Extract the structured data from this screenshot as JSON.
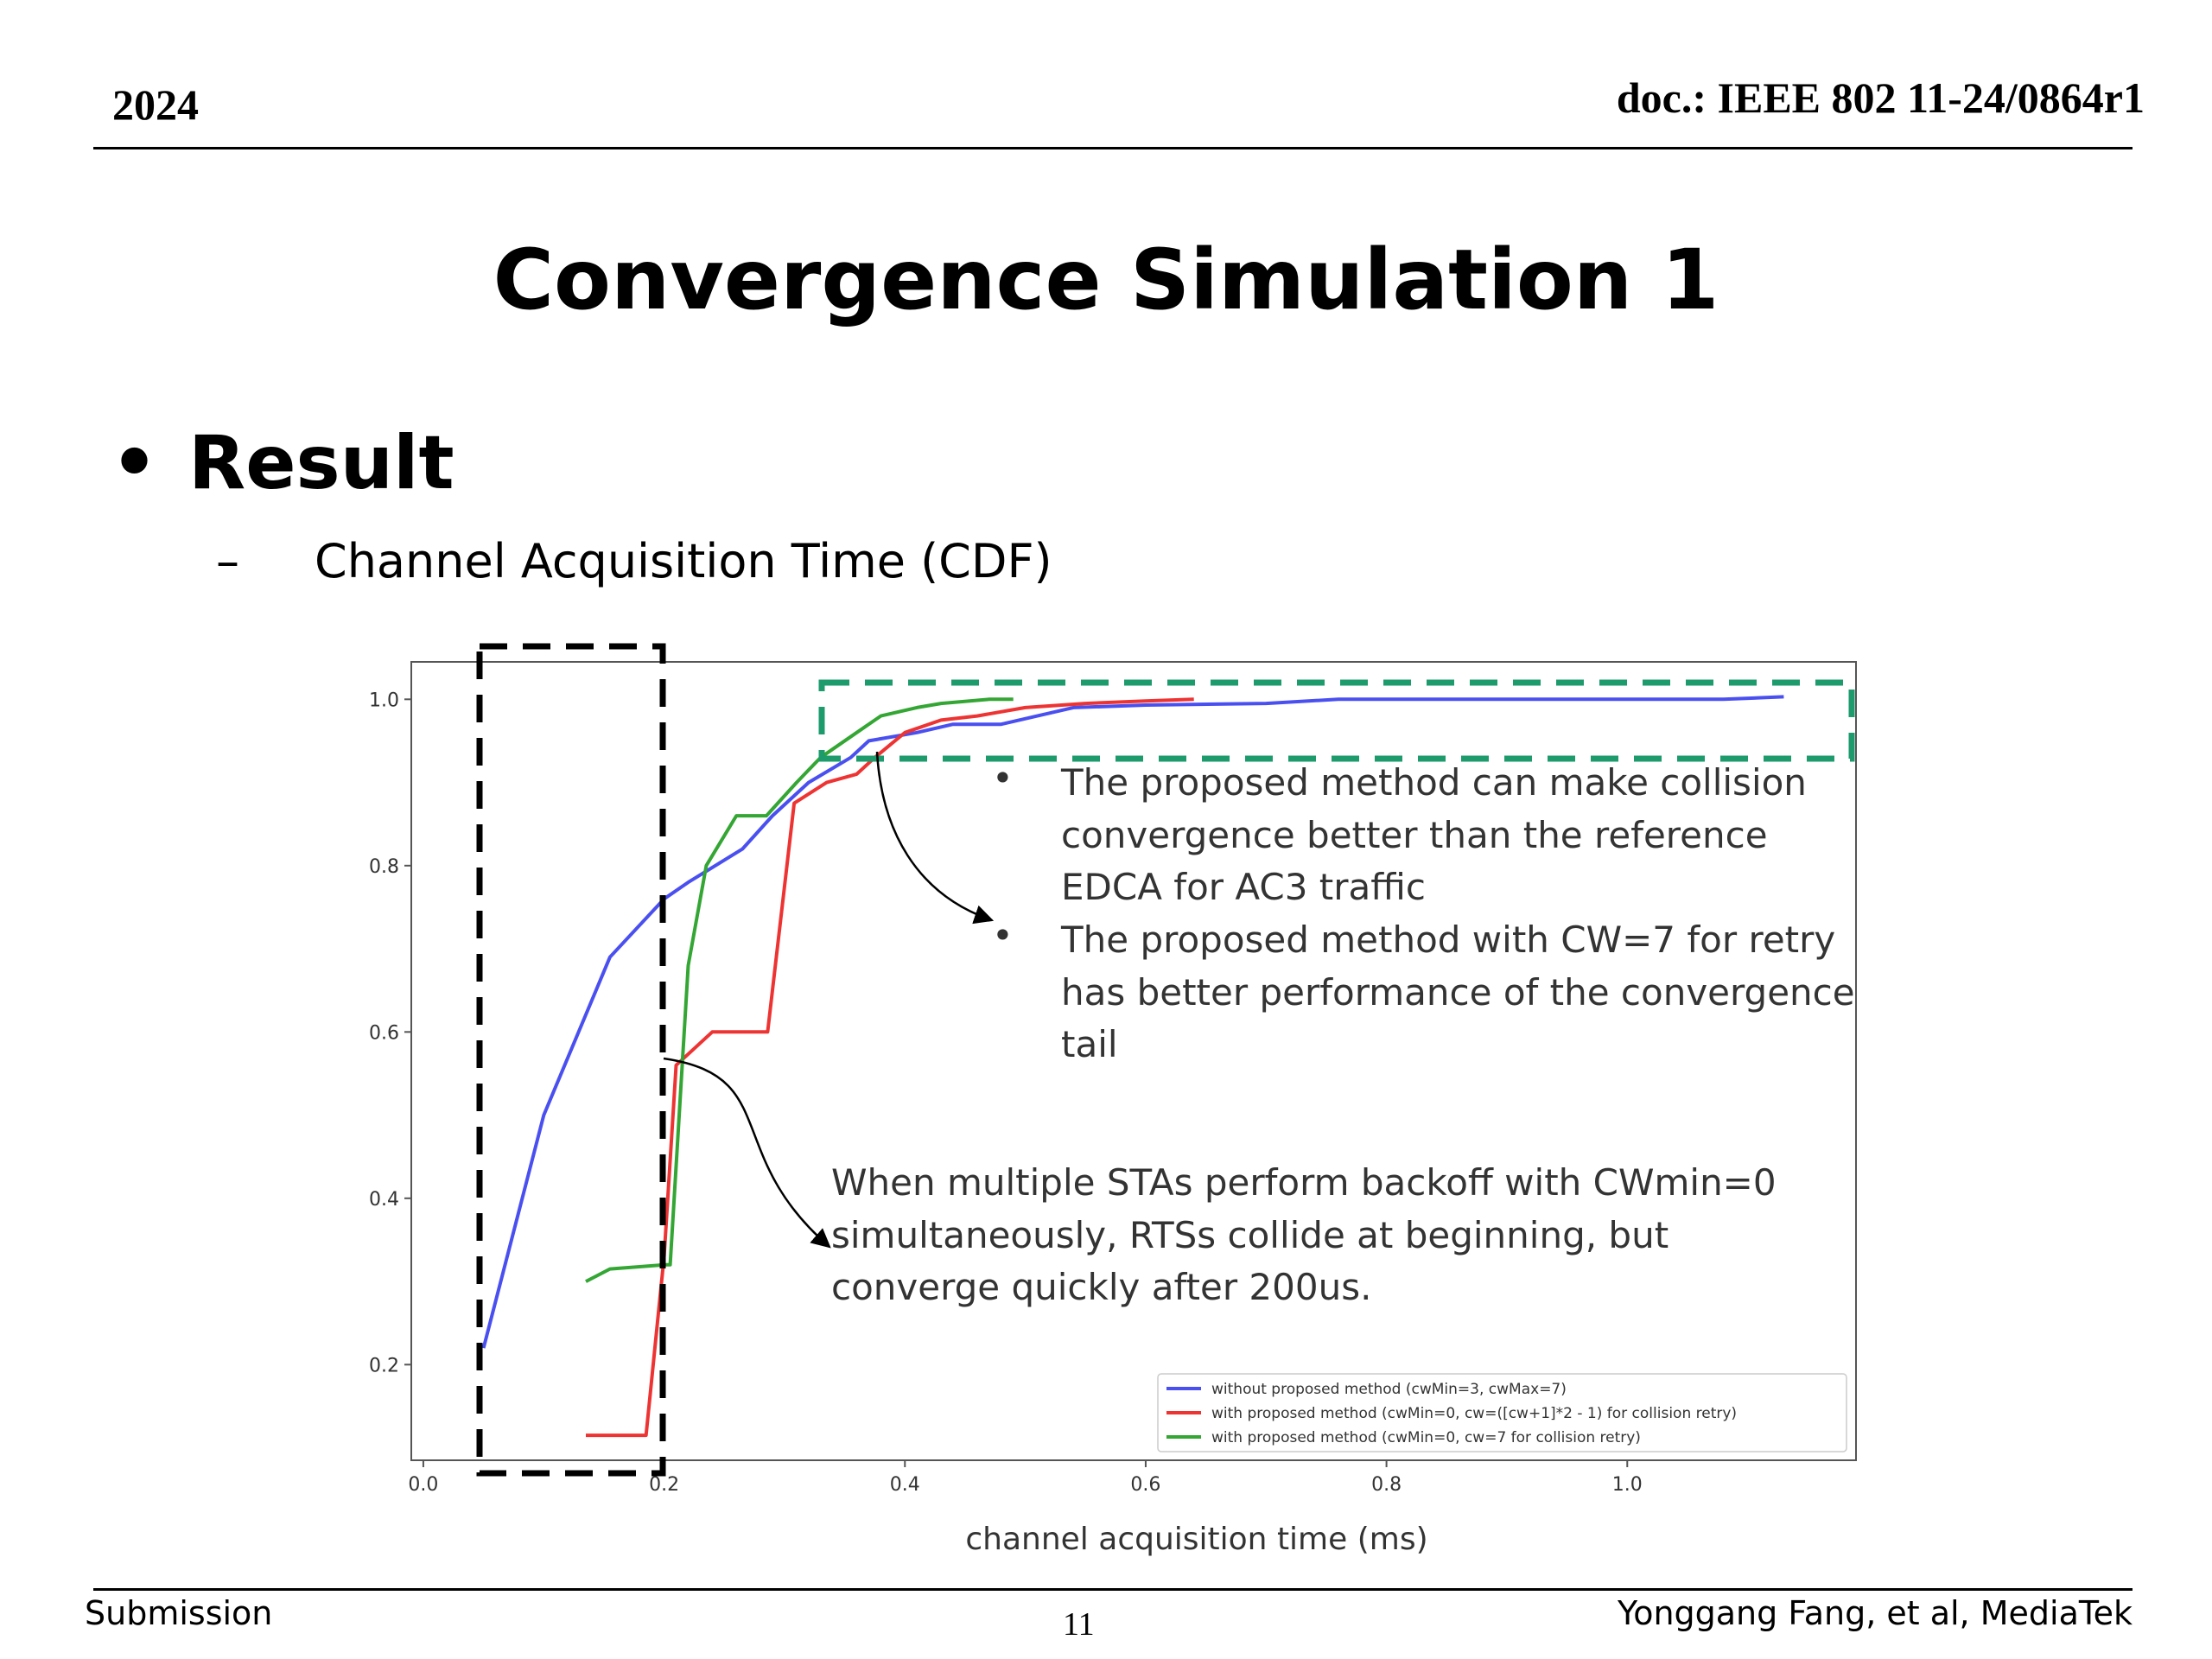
{
  "header": {
    "year": "2024",
    "doc": "doc.: IEEE 802 11-24/0864r1"
  },
  "slide": {
    "title": "Convergence Simulation 1",
    "bullet": "Result",
    "sub_bullet": "Channel Acquisition Time (CDF)"
  },
  "footer": {
    "left": "Submission",
    "page": "11",
    "right": "Yonggang Fang, et al, MediaTek"
  },
  "chart_data": {
    "type": "line",
    "xlabel": "channel acquisition time (ms)",
    "ylabel": "",
    "xlim": [
      -0.01,
      1.19
    ],
    "ylim": [
      0.085,
      1.045
    ],
    "xticks": [
      0.0,
      0.2,
      0.4,
      0.6,
      0.8,
      1.0
    ],
    "xtick_labels": [
      "0.0",
      "0.2",
      "0.4",
      "0.6",
      "0.8",
      "1.0"
    ],
    "yticks": [
      0.2,
      0.4,
      0.6,
      0.8,
      1.0
    ],
    "ytick_labels": [
      "0.2",
      "0.4",
      "0.6",
      "0.8",
      "1.0"
    ],
    "grid": false,
    "legend_position": "lower-right",
    "series": [
      {
        "name": "without proposed method (cwMin=3, cwMax=7)",
        "color": "#4a4ff0",
        "x": [
          0.05,
          0.1,
          0.155,
          0.2,
          0.22,
          0.265,
          0.29,
          0.32,
          0.355,
          0.37,
          0.41,
          0.44,
          0.48,
          0.54,
          0.6,
          0.7,
          0.76,
          0.9,
          1.0,
          1.08,
          1.13
        ],
        "y": [
          0.22,
          0.5,
          0.69,
          0.76,
          0.78,
          0.82,
          0.86,
          0.9,
          0.93,
          0.95,
          0.96,
          0.97,
          0.97,
          0.99,
          0.993,
          0.995,
          1.0,
          1.0,
          1.0,
          1.0,
          1.003
        ]
      },
      {
        "name": "with proposed method (cwMin=0, cw=([cw+1]*2 - 1) for collision retry)",
        "color": "#ee3333",
        "x": [
          0.135,
          0.185,
          0.2,
          0.21,
          0.24,
          0.286,
          0.308,
          0.335,
          0.36,
          0.375,
          0.4,
          0.43,
          0.46,
          0.5,
          0.55,
          0.6,
          0.64
        ],
        "y": [
          0.115,
          0.115,
          0.33,
          0.56,
          0.6,
          0.6,
          0.875,
          0.9,
          0.91,
          0.93,
          0.96,
          0.975,
          0.98,
          0.99,
          0.995,
          0.998,
          1.0
        ]
      },
      {
        "name": "with proposed method (cwMin=0, cw=7 for collision retry)",
        "color": "#33a633",
        "x": [
          0.135,
          0.155,
          0.2,
          0.205,
          0.22,
          0.235,
          0.26,
          0.285,
          0.31,
          0.33,
          0.36,
          0.38,
          0.41,
          0.43,
          0.47,
          0.49
        ],
        "y": [
          0.3,
          0.315,
          0.32,
          0.32,
          0.68,
          0.8,
          0.86,
          0.86,
          0.9,
          0.93,
          0.96,
          0.98,
          0.99,
          0.995,
          1.0,
          1.0
        ]
      }
    ],
    "annotations": {
      "right_note_bullets": [
        [
          "The proposed method can make collision",
          "convergence better than the reference",
          "EDCA for AC3 traffic"
        ],
        [
          "The proposed method with CW=7 for retry",
          "has better performance of the convergence",
          "tail"
        ]
      ],
      "left_note": [
        "When multiple STAs perform backoff with CWmin=0",
        "simultaneously,  RTSs collide at beginning, but",
        "converge quickly after 200us."
      ]
    },
    "highlight_colors": {
      "black_box": "#000000",
      "green_box": "#1e9b6d"
    }
  }
}
